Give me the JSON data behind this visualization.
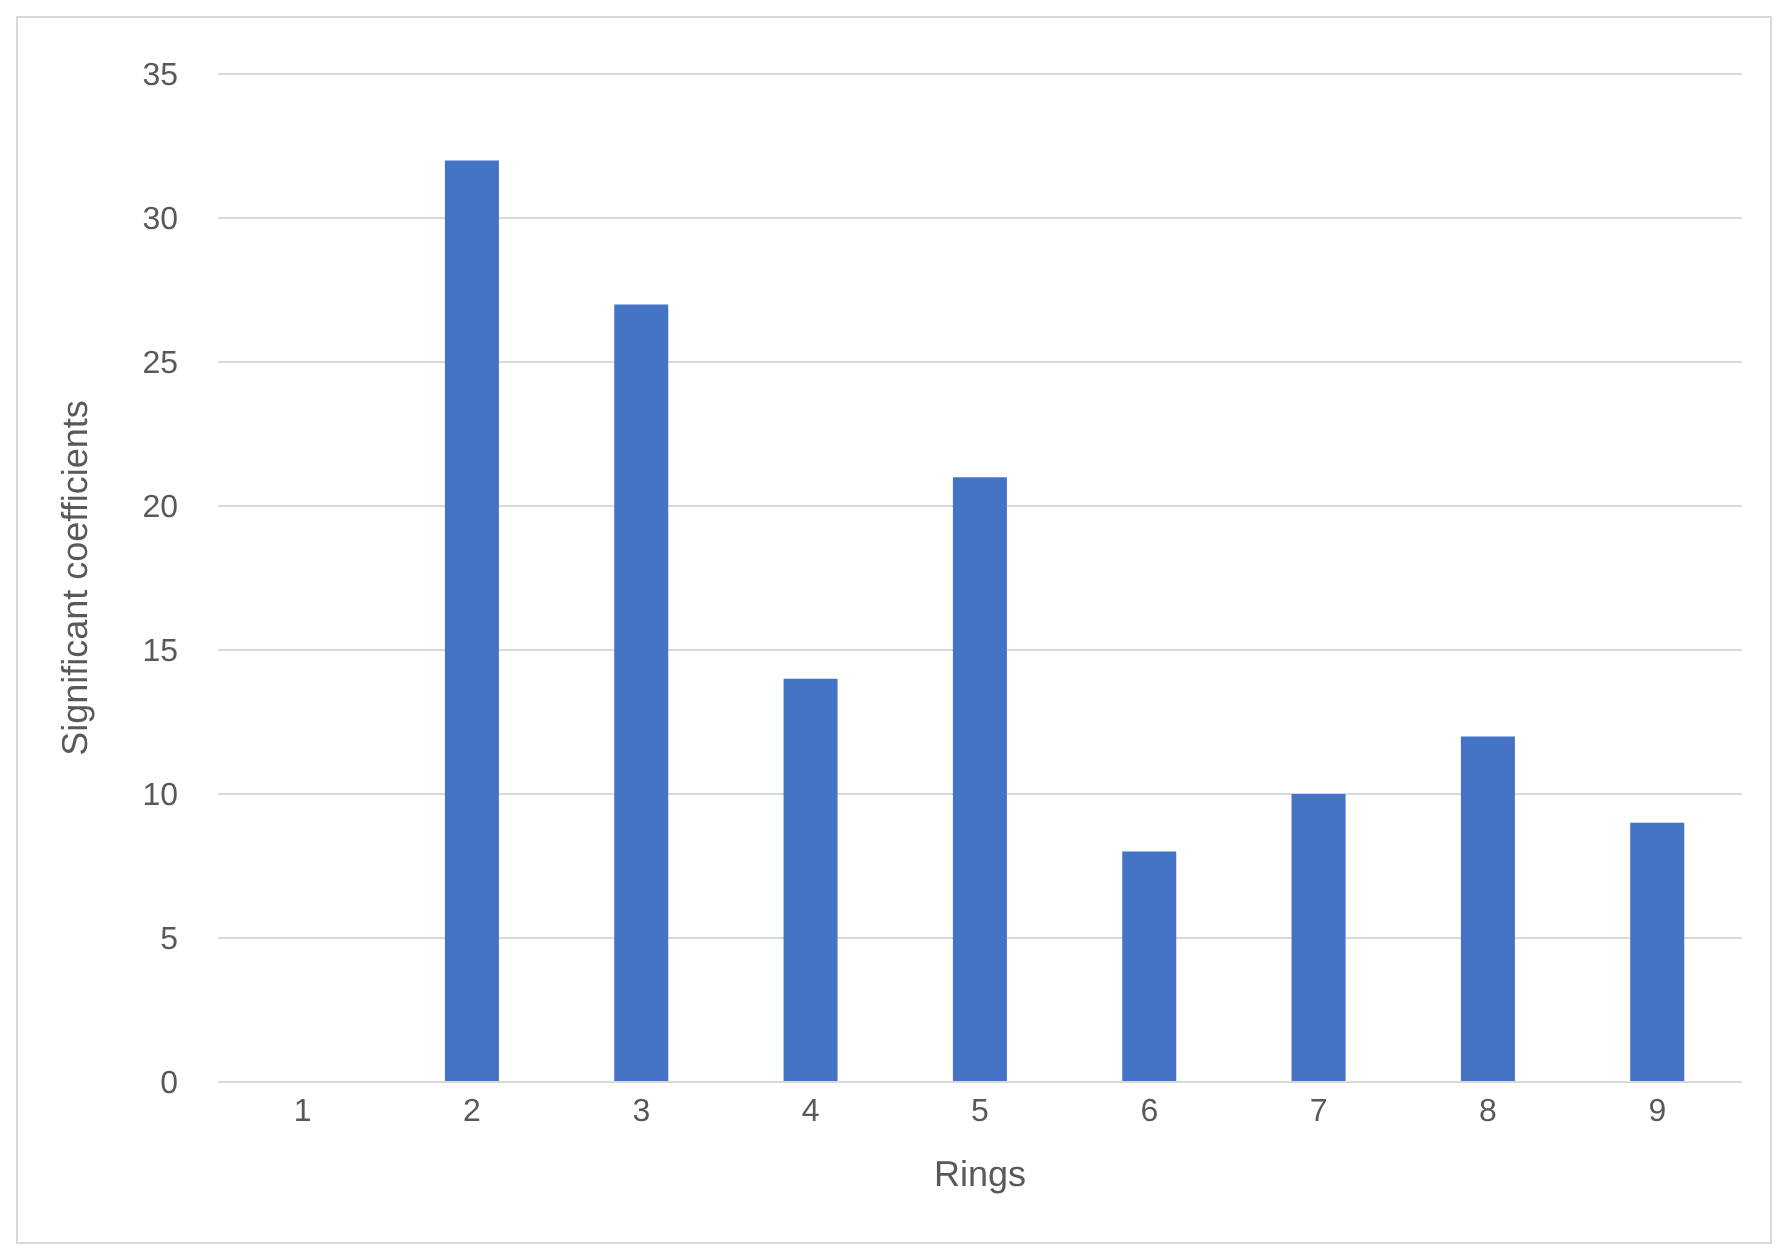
{
  "chart_data": {
    "type": "bar",
    "xlabel": "Rings",
    "ylabel": "Significant coefficients",
    "categories": [
      "1",
      "2",
      "3",
      "4",
      "5",
      "6",
      "7",
      "8",
      "9"
    ],
    "values": [
      0,
      32,
      27,
      14,
      21,
      8,
      10,
      12,
      9
    ],
    "color": "#4472c4",
    "ylim": [
      0,
      35
    ],
    "yticks": [
      0,
      5,
      10,
      15,
      20,
      25,
      30,
      35
    ],
    "grid": "y"
  }
}
